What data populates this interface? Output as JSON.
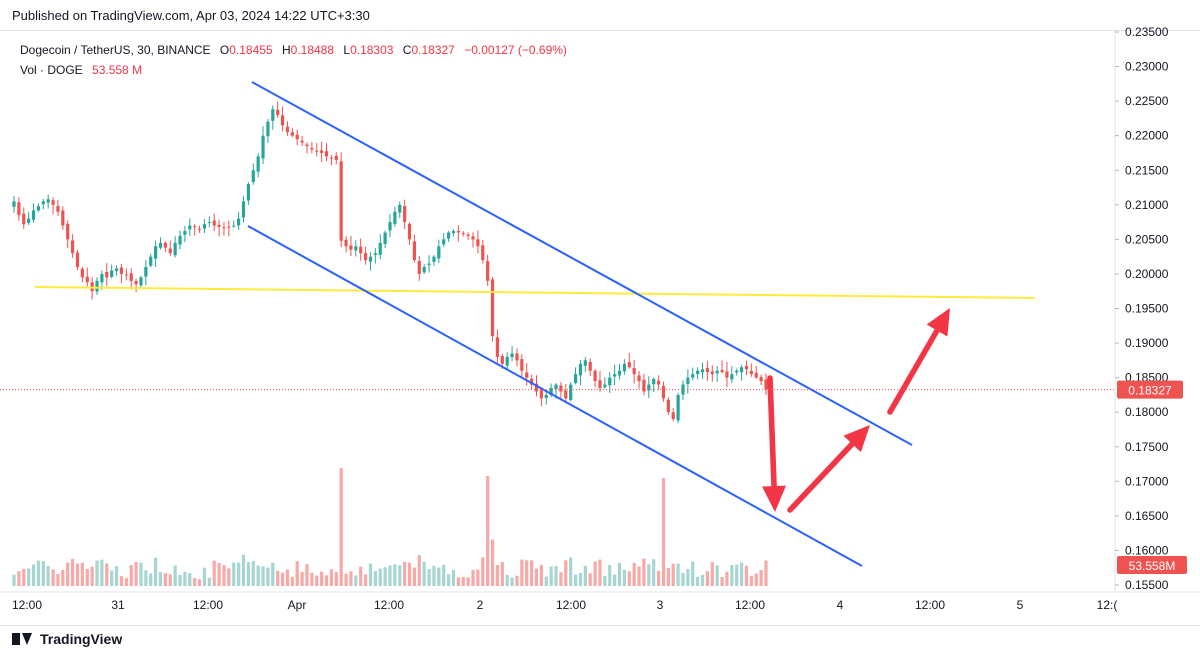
{
  "header": {
    "published": "Published on TradingView.com, Apr 03, 2024 14:22 UTC+3:30"
  },
  "legend": {
    "symbol": "Dogecoin / TetherUS, 30, BINANCE",
    "open_label": "O",
    "open": "0.18455",
    "high_label": "H",
    "high": "0.18488",
    "low_label": "L",
    "low": "0.18303",
    "close_label": "C",
    "close": "0.18327",
    "change": "−0.00127 (−0.69%)",
    "vol_label": "Vol · DOGE",
    "vol_value": "53.558 M"
  },
  "footer": {
    "brand": "TradingView"
  },
  "colors": {
    "up": "#26a69a",
    "down": "#ef5350",
    "vol_up": "#a5d6d2",
    "vol_down": "#f7a9a7",
    "channel": "#2962ff",
    "horizontal": "#ffeb3b",
    "arrow": "#f23645"
  },
  "chart_data": {
    "type": "candlestick",
    "symbol": "Dogecoin / TetherUS",
    "interval": "30",
    "exchange": "BINANCE",
    "y_ticks": [
      "0.23500",
      "0.23000",
      "0.22500",
      "0.22000",
      "0.21500",
      "0.21000",
      "0.20500",
      "0.20000",
      "0.19500",
      "0.19000",
      "0.18500",
      "0.18000",
      "0.17500",
      "0.17000",
      "0.16500",
      "0.16000",
      "0.15500"
    ],
    "ylim": [
      0.155,
      0.235
    ],
    "x_ticks": [
      "12:00",
      "31",
      "12:00",
      "Apr",
      "12:00",
      "2",
      "12:00",
      "3",
      "12:00",
      "4",
      "12:00",
      "5",
      "12:("
    ],
    "last_price": "0.18327",
    "volume_label": "53.558M",
    "close_series": [
      0.2105,
      0.2085,
      0.2072,
      0.208,
      0.2092,
      0.2098,
      0.2105,
      0.2108,
      0.21,
      0.209,
      0.207,
      0.205,
      0.203,
      0.201,
      0.1995,
      0.1988,
      0.1975,
      0.199,
      0.2,
      0.1995,
      0.2005,
      0.2008,
      0.2,
      0.1998,
      0.199,
      0.1985,
      0.1995,
      0.201,
      0.2025,
      0.204,
      0.2045,
      0.2038,
      0.203,
      0.2045,
      0.2055,
      0.2062,
      0.207,
      0.2068,
      0.2065,
      0.2072,
      0.2075,
      0.207,
      0.2068,
      0.2066,
      0.2068,
      0.207,
      0.208,
      0.2105,
      0.213,
      0.215,
      0.217,
      0.22,
      0.222,
      0.2238,
      0.223,
      0.2215,
      0.2205,
      0.22,
      0.2195,
      0.219,
      0.2185,
      0.218,
      0.2178,
      0.2175,
      0.217,
      0.2168,
      0.2165,
      0.2048,
      0.204,
      0.2035,
      0.204,
      0.203,
      0.202,
      0.2025,
      0.203,
      0.2045,
      0.206,
      0.2075,
      0.209,
      0.21,
      0.2075,
      0.205,
      0.202,
      0.2,
      0.201,
      0.2015,
      0.2025,
      0.204,
      0.205,
      0.206,
      0.2062,
      0.206,
      0.2058,
      0.2055,
      0.205,
      0.204,
      0.202,
      0.199,
      0.191,
      0.188,
      0.187,
      0.188,
      0.1885,
      0.1875,
      0.186,
      0.185,
      0.184,
      0.183,
      0.182,
      0.1825,
      0.1835,
      0.184,
      0.183,
      0.182,
      0.184,
      0.1855,
      0.187,
      0.1875,
      0.186,
      0.1845,
      0.1835,
      0.184,
      0.185,
      0.1855,
      0.186,
      0.187,
      0.1865,
      0.1855,
      0.1845,
      0.183,
      0.184,
      0.1848,
      0.184,
      0.182,
      0.18,
      0.179,
      0.1825,
      0.184,
      0.185,
      0.1855,
      0.186,
      0.1862,
      0.1858,
      0.1855,
      0.186,
      0.1858,
      0.185,
      0.1855,
      0.186,
      0.1865,
      0.1862,
      0.1855,
      0.185,
      0.1845,
      0.1833
    ]
  }
}
